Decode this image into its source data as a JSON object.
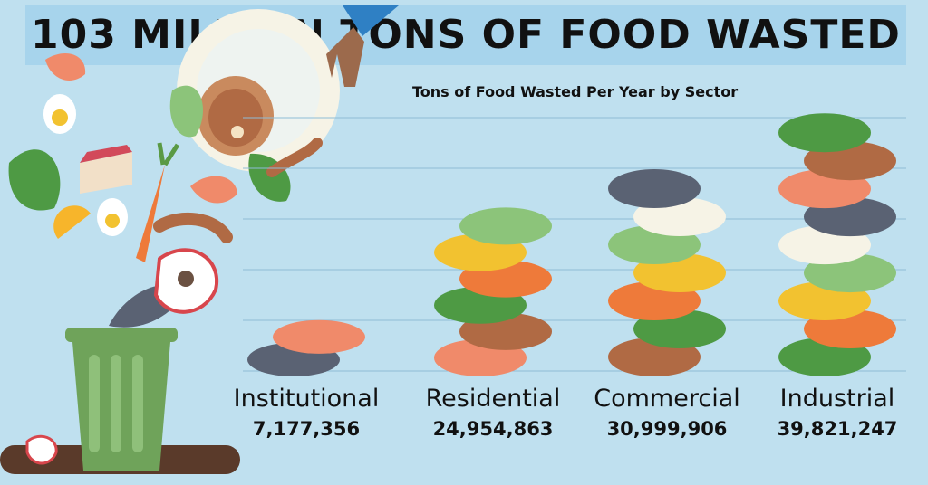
{
  "header": {
    "title": "103 MILLION TONS OF FOOD WASTED"
  },
  "chart_data": {
    "type": "bar",
    "title": "Tons of Food Wasted Per Year by Sector",
    "xlabel": "",
    "ylabel": "",
    "categories": [
      "Institutional",
      "Residential",
      "Commercial",
      "Industrial"
    ],
    "values": [
      7177356,
      24954863,
      30999906,
      39821247
    ],
    "value_labels": [
      "7,177,356",
      "24,954,863",
      "30,999,906",
      "39,821,247"
    ],
    "ylim": [
      0,
      40000000
    ],
    "grid": true,
    "legend": "none",
    "bar_style": "stacked food illustrations"
  },
  "colors": {
    "background": "#bfe0ef",
    "title_band": "#a7d4ec",
    "gridline": "#8fbcd6",
    "bin": "#6fa35a",
    "ground": "#5a3a2a"
  },
  "icons": [
    "trash-bin-icon",
    "carrot-icon",
    "egg-icon",
    "shrimp-icon",
    "fish-icon",
    "apple-core-icon",
    "sausage-icon",
    "lettuce-icon",
    "lemon-icon",
    "steak-icon",
    "cake-icon",
    "plate-icon",
    "fork-hand-icon"
  ]
}
